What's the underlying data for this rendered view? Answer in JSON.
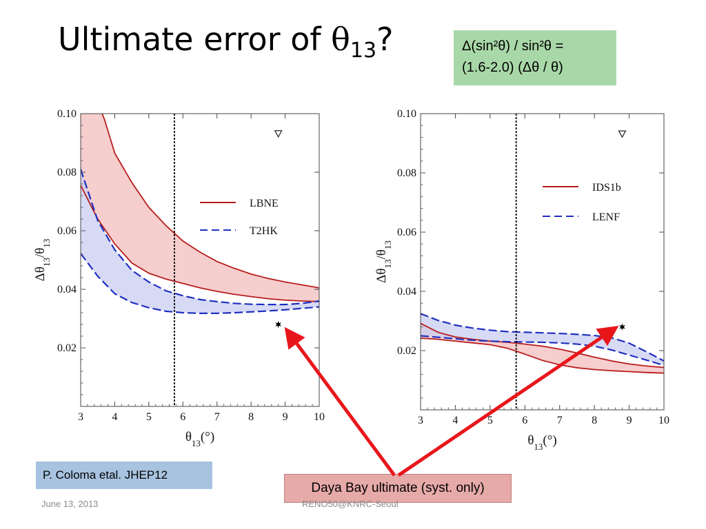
{
  "slide": {
    "title_prefix": "Ultimate error of ",
    "title_symbol": "θ",
    "title_subscript": "13",
    "title_suffix": "?",
    "formula_line1": "Δ(sin²θ) / sin²θ =",
    "formula_line2": "(1.6-2.0) (Δθ / θ)",
    "citation": "P. Coloma etal. JHEP12",
    "callout": "Daya Bay ultimate (syst. only)",
    "footer_date": "June 13, 2013",
    "footer_center": "RENO50@KNRC-Seoul"
  },
  "colors": {
    "red": "#b71c1c",
    "red_fill": "#f5c6c6",
    "blue": "#1f2fc0",
    "blue_fill": "#c9cdf2",
    "arrow": "#e8161b",
    "formula_box": "#a9d8a8",
    "citation_box": "#a8c3e0",
    "callout_box": "#e6aaa9"
  },
  "chart_data": [
    {
      "type": "area",
      "xlabel": "θ13(°)",
      "ylabel": "Δθ13/θ13",
      "xlim": [
        3,
        10
      ],
      "ylim": [
        0,
        0.1
      ],
      "x_ticks": [
        "3",
        "4",
        "5",
        "6",
        "7",
        "8",
        "9",
        "10"
      ],
      "y_ticks": [
        "0.02",
        "0.04",
        "0.06",
        "0.08",
        "0.10"
      ],
      "legend_position": "right",
      "vline_x": 5.75,
      "marker_triangle": {
        "x": 8.8,
        "y": 0.093
      },
      "marker_star": {
        "x": 8.8,
        "y": 0.028
      },
      "series": [
        {
          "name": "LBNE",
          "style": "solid",
          "upper": [
            [
              3.0,
              0.118
            ],
            [
              3.7,
              0.098
            ],
            [
              4.0,
              0.0865
            ],
            [
              4.5,
              0.0765
            ],
            [
              5.0,
              0.068
            ],
            [
              5.5,
              0.0618
            ],
            [
              6.0,
              0.0565
            ],
            [
              6.5,
              0.0527
            ],
            [
              7.0,
              0.0495
            ],
            [
              7.5,
              0.0472
            ],
            [
              8.0,
              0.0452
            ],
            [
              8.5,
              0.0437
            ],
            [
              9.0,
              0.0425
            ],
            [
              9.5,
              0.0415
            ],
            [
              10.0,
              0.0405
            ]
          ],
          "lower": [
            [
              3.0,
              0.0755
            ],
            [
              3.5,
              0.064
            ],
            [
              4.0,
              0.0555
            ],
            [
              4.5,
              0.049
            ],
            [
              5.0,
              0.0455
            ],
            [
              5.5,
              0.0435
            ],
            [
              6.0,
              0.042
            ],
            [
              6.5,
              0.0405
            ],
            [
              7.0,
              0.0393
            ],
            [
              7.5,
              0.0383
            ],
            [
              8.0,
              0.0375
            ],
            [
              8.5,
              0.0368
            ],
            [
              9.0,
              0.0363
            ],
            [
              9.5,
              0.036
            ],
            [
              10.0,
              0.0358
            ]
          ]
        },
        {
          "name": "T2HK",
          "style": "dashed",
          "upper": [
            [
              3.0,
              0.081
            ],
            [
              3.5,
              0.0635
            ],
            [
              4.0,
              0.0535
            ],
            [
              4.5,
              0.0465
            ],
            [
              5.0,
              0.0425
            ],
            [
              5.5,
              0.0395
            ],
            [
              6.0,
              0.0378
            ],
            [
              6.5,
              0.0365
            ],
            [
              7.0,
              0.0358
            ],
            [
              7.5,
              0.0352
            ],
            [
              8.0,
              0.0349
            ],
            [
              8.5,
              0.0348
            ],
            [
              9.0,
              0.0348
            ],
            [
              9.5,
              0.0352
            ],
            [
              10.0,
              0.036
            ]
          ],
          "lower": [
            [
              3.0,
              0.0522
            ],
            [
              3.5,
              0.0445
            ],
            [
              4.0,
              0.0385
            ],
            [
              4.5,
              0.0355
            ],
            [
              5.0,
              0.0337
            ],
            [
              5.5,
              0.0325
            ],
            [
              6.0,
              0.032
            ],
            [
              6.5,
              0.0318
            ],
            [
              7.0,
              0.0318
            ],
            [
              7.5,
              0.032
            ],
            [
              8.0,
              0.0323
            ],
            [
              8.5,
              0.0326
            ],
            [
              9.0,
              0.033
            ],
            [
              9.5,
              0.0335
            ],
            [
              10.0,
              0.034
            ]
          ]
        }
      ]
    },
    {
      "type": "area",
      "xlabel": "θ13(°)",
      "ylabel": "Δθ13/θ13",
      "xlim": [
        3,
        10
      ],
      "ylim": [
        0,
        0.1
      ],
      "x_ticks": [
        "3",
        "4",
        "5",
        "6",
        "7",
        "8",
        "9",
        "10"
      ],
      "y_ticks": [
        "0.02",
        "0.04",
        "0.06",
        "0.08",
        "0.10"
      ],
      "legend_position": "right",
      "vline_x": 5.75,
      "marker_triangle": {
        "x": 8.8,
        "y": 0.093
      },
      "marker_star": {
        "x": 8.8,
        "y": 0.028
      },
      "series": [
        {
          "name": "IDS1b",
          "style": "solid",
          "upper": [
            [
              3.0,
              0.0292
            ],
            [
              3.5,
              0.0262
            ],
            [
              4.0,
              0.0246
            ],
            [
              4.5,
              0.0238
            ],
            [
              5.0,
              0.0232
            ],
            [
              5.5,
              0.0228
            ],
            [
              6.0,
              0.0222
            ],
            [
              6.5,
              0.0215
            ],
            [
              7.0,
              0.0205
            ],
            [
              7.5,
              0.0192
            ],
            [
              8.0,
              0.0178
            ],
            [
              8.5,
              0.0165
            ],
            [
              9.0,
              0.0155
            ],
            [
              9.5,
              0.0148
            ],
            [
              10.0,
              0.0143
            ]
          ],
          "lower": [
            [
              3.0,
              0.0242
            ],
            [
              3.5,
              0.0238
            ],
            [
              4.0,
              0.0232
            ],
            [
              4.5,
              0.0226
            ],
            [
              5.0,
              0.022
            ],
            [
              5.5,
              0.0208
            ],
            [
              6.0,
              0.0188
            ],
            [
              6.5,
              0.0167
            ],
            [
              7.0,
              0.0152
            ],
            [
              7.5,
              0.0142
            ],
            [
              8.0,
              0.0136
            ],
            [
              8.5,
              0.0132
            ],
            [
              9.0,
              0.0129
            ],
            [
              9.5,
              0.0126
            ],
            [
              10.0,
              0.0124
            ]
          ]
        },
        {
          "name": "LENF",
          "style": "dashed",
          "upper": [
            [
              3.0,
              0.0325
            ],
            [
              3.5,
              0.0302
            ],
            [
              4.0,
              0.0286
            ],
            [
              4.5,
              0.0276
            ],
            [
              5.0,
              0.0269
            ],
            [
              5.5,
              0.0264
            ],
            [
              6.0,
              0.0262
            ],
            [
              6.5,
              0.026
            ],
            [
              7.0,
              0.0258
            ],
            [
              7.5,
              0.0255
            ],
            [
              8.0,
              0.0251
            ],
            [
              8.5,
              0.0243
            ],
            [
              9.0,
              0.0225
            ],
            [
              9.5,
              0.0196
            ],
            [
              10.0,
              0.0165
            ]
          ],
          "lower": [
            [
              3.0,
              0.025
            ],
            [
              3.5,
              0.0245
            ],
            [
              4.0,
              0.024
            ],
            [
              4.5,
              0.0235
            ],
            [
              5.0,
              0.0232
            ],
            [
              5.5,
              0.023
            ],
            [
              6.0,
              0.0229
            ],
            [
              6.5,
              0.0228
            ],
            [
              7.0,
              0.0226
            ],
            [
              7.5,
              0.0222
            ],
            [
              8.0,
              0.0215
            ],
            [
              8.5,
              0.0202
            ],
            [
              9.0,
              0.0185
            ],
            [
              9.5,
              0.0168
            ],
            [
              10.0,
              0.015
            ]
          ]
        }
      ]
    }
  ]
}
